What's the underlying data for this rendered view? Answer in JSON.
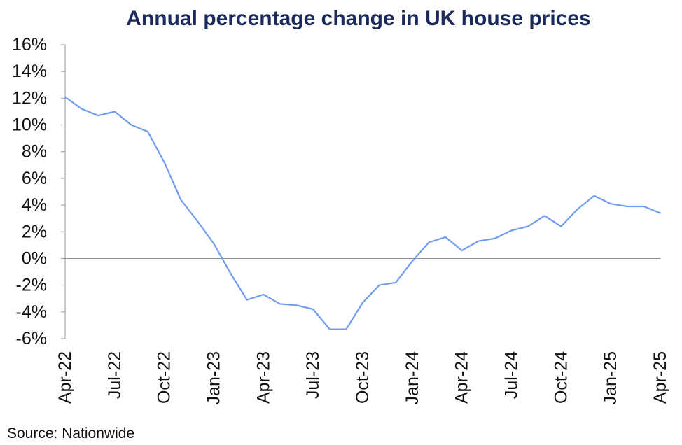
{
  "chart_data": {
    "type": "line",
    "title": "Annual percentage change in UK house prices",
    "source": "Source: Nationwide",
    "xlabel": "",
    "ylabel": "",
    "ylim": [
      -6,
      16
    ],
    "yticks": [
      16,
      14,
      12,
      10,
      8,
      6,
      4,
      2,
      0,
      -2,
      -4,
      -6
    ],
    "ytick_labels": [
      "16%",
      "14%",
      "12%",
      "10%",
      "8%",
      "6%",
      "4%",
      "2%",
      "0%",
      "-2%",
      "-4%",
      "-6%"
    ],
    "x_tick_labels": [
      "Apr-22",
      "Jul-22",
      "Oct-22",
      "Jan-23",
      "Apr-23",
      "Jul-23",
      "Oct-23",
      "Jan-24",
      "Apr-24",
      "Jul-24",
      "Oct-24",
      "Jan-25",
      "Apr-25"
    ],
    "grid": false,
    "legend": "none",
    "line_color": "#6f9cf0",
    "series": [
      {
        "x": [
          "Apr-22",
          "May-22",
          "Jun-22",
          "Jul-22",
          "Aug-22",
          "Sep-22",
          "Oct-22",
          "Nov-22",
          "Dec-22",
          "Jan-23",
          "Feb-23",
          "Mar-23",
          "Apr-23",
          "May-23",
          "Jun-23",
          "Jul-23",
          "Aug-23",
          "Sep-23",
          "Oct-23",
          "Nov-23",
          "Dec-23",
          "Jan-24",
          "Feb-24",
          "Mar-24",
          "Apr-24",
          "May-24",
          "Jun-24",
          "Jul-24",
          "Aug-24",
          "Sep-24",
          "Oct-24",
          "Nov-24",
          "Dec-24",
          "Jan-25",
          "Feb-25",
          "Mar-25",
          "Apr-25"
        ],
        "values": [
          12.1,
          11.2,
          10.7,
          11.0,
          10.0,
          9.5,
          7.2,
          4.4,
          2.8,
          1.1,
          -1.1,
          -3.1,
          -2.7,
          -3.4,
          -3.5,
          -3.8,
          -5.3,
          -5.3,
          -3.3,
          -2.0,
          -1.8,
          -0.2,
          1.2,
          1.6,
          0.6,
          1.3,
          1.5,
          2.1,
          2.4,
          3.2,
          2.4,
          3.7,
          4.7,
          4.1,
          3.9,
          3.9,
          3.4
        ]
      }
    ]
  }
}
